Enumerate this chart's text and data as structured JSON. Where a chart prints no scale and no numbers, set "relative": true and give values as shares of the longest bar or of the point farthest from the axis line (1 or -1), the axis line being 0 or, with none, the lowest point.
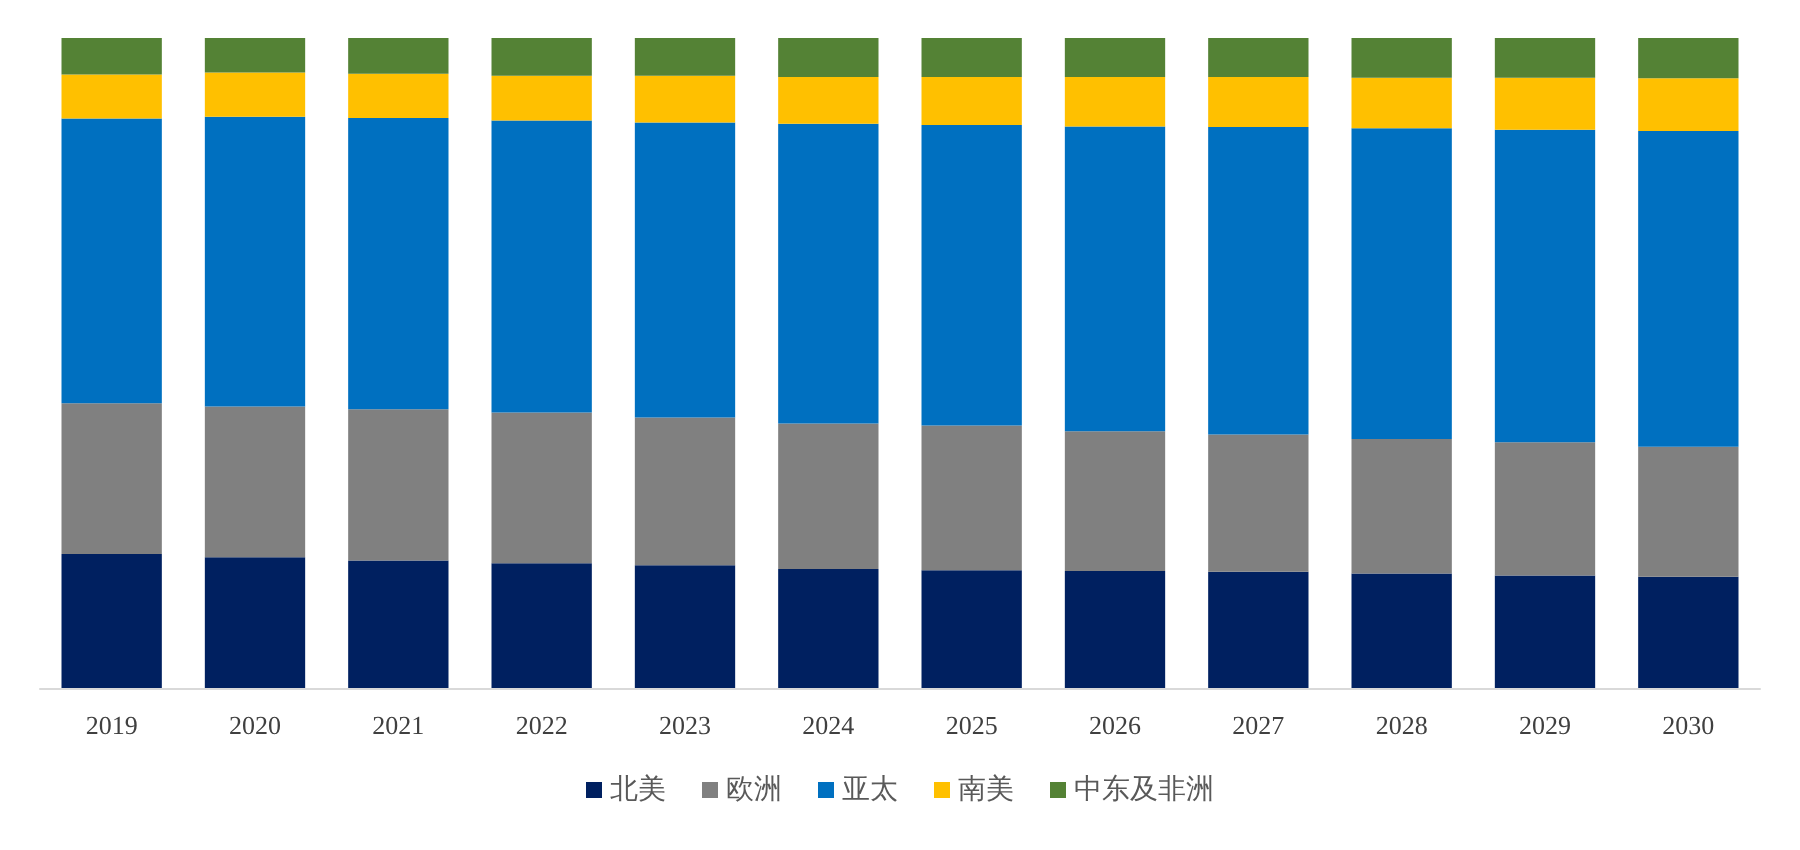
{
  "chart_data": {
    "type": "bar",
    "stacked": true,
    "relative": true,
    "legend": "bottom",
    "grid": false,
    "categories": [
      "2019",
      "2020",
      "2021",
      "2022",
      "2023",
      "2024",
      "2025",
      "2026",
      "2027",
      "2028",
      "2029",
      "2030"
    ],
    "series": [
      {
        "name": "北美",
        "color": "#002060",
        "values": [
          0.206,
          0.201,
          0.196,
          0.192,
          0.189,
          0.183,
          0.181,
          0.18,
          0.179,
          0.176,
          0.173,
          0.171
        ]
      },
      {
        "name": "欧洲",
        "color": "#808080",
        "values": [
          0.232,
          0.232,
          0.233,
          0.232,
          0.227,
          0.224,
          0.223,
          0.215,
          0.211,
          0.207,
          0.205,
          0.2
        ]
      },
      {
        "name": "亚太",
        "color": "#0070c0",
        "values": [
          0.438,
          0.446,
          0.448,
          0.449,
          0.454,
          0.461,
          0.462,
          0.469,
          0.473,
          0.478,
          0.481,
          0.486
        ]
      },
      {
        "name": "南美",
        "color": "#ffc000",
        "values": [
          0.068,
          0.068,
          0.068,
          0.069,
          0.072,
          0.072,
          0.074,
          0.076,
          0.077,
          0.078,
          0.08,
          0.081
        ]
      },
      {
        "name": "中东及非洲",
        "color": "#548235",
        "values": [
          0.056,
          0.053,
          0.055,
          0.058,
          0.058,
          0.06,
          0.06,
          0.06,
          0.06,
          0.061,
          0.061,
          0.062
        ]
      }
    ]
  }
}
